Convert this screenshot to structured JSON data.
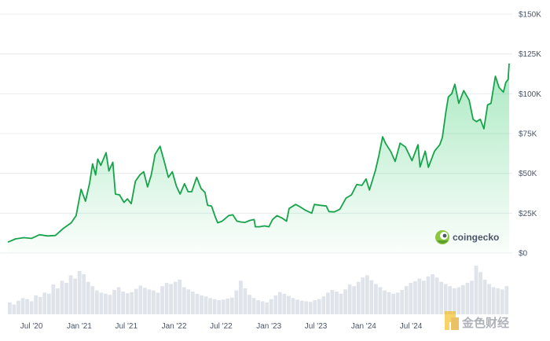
{
  "chart_data": {
    "type": "area",
    "title": "",
    "xlabel": "",
    "ylabel": "",
    "ylim": [
      0,
      150000
    ],
    "y_ticks": [
      0,
      25000,
      50000,
      75000,
      100000,
      125000,
      150000
    ],
    "y_tick_labels": [
      "$0",
      "$25K",
      "$50K",
      "$75K",
      "$100K",
      "$125K",
      "$150K"
    ],
    "y_axis_position": "right",
    "grid": true,
    "x_tick_labels": [
      "Jul '20",
      "Jan '21",
      "Jul '21",
      "Jan '22",
      "Jul '22",
      "Jan '23",
      "Jul '23",
      "Jan '24",
      "Jul '24"
    ],
    "x_tick_dates": [
      "2020-07-01",
      "2021-01-01",
      "2021-07-01",
      "2022-01-01",
      "2022-07-01",
      "2023-01-01",
      "2023-07-01",
      "2024-01-01",
      "2024-07-01"
    ],
    "series": [
      {
        "color": "#16a34a",
        "x": [
          "2020-04-01",
          "2020-05-01",
          "2020-06-01",
          "2020-07-01",
          "2020-08-01",
          "2020-09-01",
          "2020-10-01",
          "2020-11-01",
          "2020-12-01",
          "2020-12-20",
          "2021-01-08",
          "2021-01-25",
          "2021-02-10",
          "2021-02-21",
          "2021-03-05",
          "2021-03-13",
          "2021-03-25",
          "2021-04-14",
          "2021-04-25",
          "2021-05-10",
          "2021-05-20",
          "2021-06-05",
          "2021-06-22",
          "2021-07-05",
          "2021-07-20",
          "2021-08-05",
          "2021-08-22",
          "2021-09-06",
          "2021-09-21",
          "2021-10-05",
          "2021-10-20",
          "2021-11-08",
          "2021-11-25",
          "2021-12-10",
          "2021-12-25",
          "2022-01-10",
          "2022-01-24",
          "2022-02-10",
          "2022-02-24",
          "2022-03-10",
          "2022-03-29",
          "2022-04-15",
          "2022-04-30",
          "2022-05-10",
          "2022-05-25",
          "2022-06-10",
          "2022-06-18",
          "2022-07-05",
          "2022-07-30",
          "2022-08-15",
          "2022-08-31",
          "2022-09-15",
          "2022-10-01",
          "2022-10-20",
          "2022-11-05",
          "2022-11-10",
          "2022-11-25",
          "2022-12-15",
          "2023-01-01",
          "2023-01-15",
          "2023-02-01",
          "2023-02-20",
          "2023-03-10",
          "2023-03-20",
          "2023-04-14",
          "2023-05-01",
          "2023-05-20",
          "2023-06-15",
          "2023-06-25",
          "2023-07-15",
          "2023-08-10",
          "2023-08-20",
          "2023-09-10",
          "2023-10-01",
          "2023-10-25",
          "2023-11-15",
          "2023-12-05",
          "2023-12-25",
          "2024-01-10",
          "2024-01-23",
          "2024-02-15",
          "2024-02-28",
          "2024-03-14",
          "2024-03-25",
          "2024-04-15",
          "2024-05-01",
          "2024-05-20",
          "2024-06-10",
          "2024-07-05",
          "2024-07-28",
          "2024-08-05",
          "2024-08-25",
          "2024-09-06",
          "2024-09-30",
          "2024-10-20",
          "2024-10-30",
          "2024-11-12",
          "2024-11-22",
          "2024-12-05",
          "2024-12-17",
          "2025-01-01",
          "2025-01-20",
          "2025-02-10",
          "2025-02-25",
          "2025-03-10",
          "2025-03-25",
          "2025-04-08",
          "2025-04-22",
          "2025-05-05",
          "2025-05-22",
          "2025-06-05",
          "2025-06-22",
          "2025-07-01",
          "2025-07-10",
          "2025-07-14"
        ],
        "y": [
          6800,
          8900,
          9600,
          9200,
          11500,
          10700,
          11000,
          15500,
          19000,
          23500,
          40000,
          32500,
          44000,
          56000,
          49000,
          59000,
          55000,
          63000,
          51500,
          57000,
          37000,
          36500,
          31800,
          34000,
          31000,
          45000,
          49000,
          51000,
          41500,
          49000,
          62000,
          67000,
          57000,
          47500,
          51000,
          42000,
          37000,
          43500,
          38500,
          38500,
          47500,
          40500,
          38000,
          30000,
          29500,
          22000,
          19000,
          20000,
          23500,
          24000,
          20000,
          19500,
          19200,
          20500,
          21000,
          16500,
          16500,
          17000,
          16500,
          21000,
          23500,
          22000,
          20000,
          28000,
          30500,
          29000,
          27000,
          25000,
          30500,
          30000,
          29500,
          26000,
          25800,
          27500,
          34500,
          36500,
          43000,
          42500,
          46500,
          39500,
          51800,
          61000,
          73000,
          69000,
          63500,
          57500,
          69000,
          66500,
          58000,
          68000,
          54000,
          64000,
          53800,
          64000,
          68000,
          72500,
          88000,
          98000,
          100000,
          106000,
          94000,
          102000,
          96000,
          84000,
          82500,
          84000,
          78000,
          93000,
          94000,
          111000,
          104000,
          101000,
          107000,
          109000,
          119000
        ]
      }
    ],
    "volume_values": [
      22,
      18,
      25,
      30,
      28,
      24,
      35,
      32,
      40,
      38,
      55,
      48,
      62,
      58,
      72,
      66,
      80,
      74,
      60,
      52,
      44,
      40,
      38,
      36,
      45,
      50,
      42,
      39,
      41,
      47,
      53,
      49,
      46,
      44,
      40,
      52,
      58,
      56,
      60,
      64,
      50,
      46,
      42,
      38,
      35,
      33,
      30,
      28,
      26,
      27,
      29,
      31,
      44,
      62,
      48,
      36,
      30,
      26,
      24,
      22,
      28,
      35,
      41,
      38,
      34,
      30,
      27,
      25,
      24,
      23,
      26,
      28,
      33,
      40,
      45,
      42,
      38,
      46,
      55,
      52,
      60,
      68,
      72,
      63,
      56,
      50,
      44,
      41,
      38,
      40,
      45,
      52,
      58,
      61,
      66,
      62,
      70,
      74,
      68,
      60,
      56,
      52,
      48,
      50,
      54,
      58,
      62,
      90,
      78,
      64,
      56,
      50,
      48,
      46,
      52
    ]
  },
  "brand": {
    "logo_text": "coingecko",
    "logo_icon": "gecko-icon"
  },
  "watermark": {
    "text": "金色财经",
    "icon": "jinse-logo-icon"
  }
}
